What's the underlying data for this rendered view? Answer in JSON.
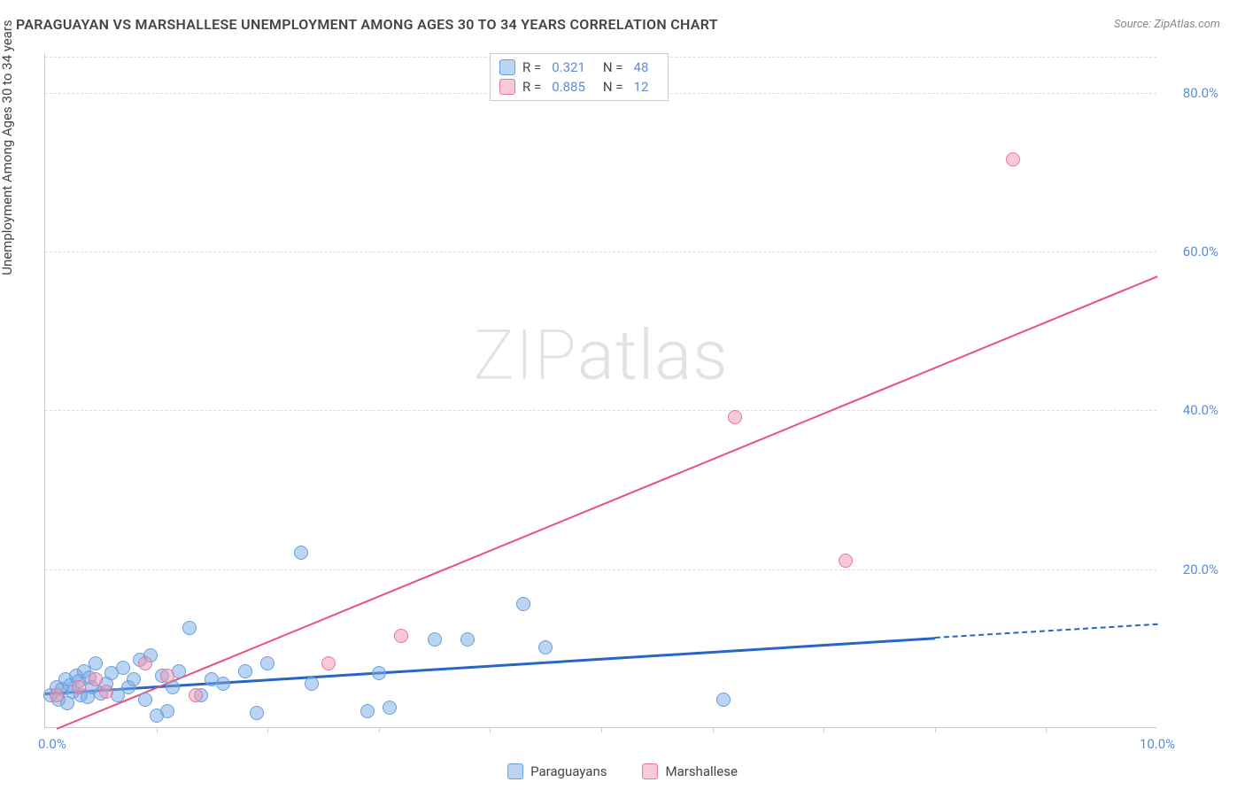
{
  "title": "PARAGUAYAN VS MARSHALLESE UNEMPLOYMENT AMONG AGES 30 TO 34 YEARS CORRELATION CHART",
  "source_label": "Source: ZipAtlas.com",
  "y_axis_label": "Unemployment Among Ages 30 to 34 years",
  "watermark": "ZIPatlas",
  "chart": {
    "type": "scatter",
    "xlim": [
      0,
      10
    ],
    "ylim": [
      0,
      85
    ],
    "x_ticks": [
      0,
      1,
      2,
      3,
      4,
      5,
      6,
      7,
      8,
      9,
      10
    ],
    "x_tick_labels": {
      "0": "0.0%",
      "10": "10.0%"
    },
    "x_tick_mark_only": [
      1,
      2,
      3,
      4,
      5,
      6,
      7,
      8,
      9
    ],
    "y_ticks": [
      20,
      40,
      60,
      80
    ],
    "y_tick_labels": {
      "20": "20.0%",
      "40": "40.0%",
      "60": "60.0%",
      "80": "80.0%"
    },
    "grid_color": "#dddddd",
    "background_color": "#ffffff",
    "tick_label_color": "#5b8dd6",
    "title_color": "#444444",
    "series": [
      {
        "name": "Paraguayans",
        "color_fill": "rgba(120,170,230,0.5)",
        "color_stroke": "#6aa0dc",
        "marker_radius": 8,
        "R": "0.321",
        "N": "48",
        "trend": {
          "x0": 0,
          "y0": 4.5,
          "x1": 8.0,
          "y1": 11.5,
          "dashed_x1": 10,
          "dashed_y1": 13.2,
          "color": "#2866c4",
          "width": 2.5
        },
        "points": [
          [
            0.05,
            4.0
          ],
          [
            0.1,
            5.0
          ],
          [
            0.12,
            3.5
          ],
          [
            0.15,
            4.8
          ],
          [
            0.18,
            6.0
          ],
          [
            0.2,
            3.0
          ],
          [
            0.22,
            5.2
          ],
          [
            0.25,
            4.5
          ],
          [
            0.28,
            6.5
          ],
          [
            0.3,
            5.8
          ],
          [
            0.32,
            4.0
          ],
          [
            0.35,
            7.0
          ],
          [
            0.38,
            3.8
          ],
          [
            0.4,
            6.2
          ],
          [
            0.42,
            5.0
          ],
          [
            0.45,
            8.0
          ],
          [
            0.5,
            4.2
          ],
          [
            0.55,
            5.5
          ],
          [
            0.6,
            6.8
          ],
          [
            0.65,
            4.0
          ],
          [
            0.7,
            7.5
          ],
          [
            0.75,
            5.0
          ],
          [
            0.8,
            6.0
          ],
          [
            0.85,
            8.5
          ],
          [
            0.9,
            3.5
          ],
          [
            0.95,
            9.0
          ],
          [
            1.0,
            1.5
          ],
          [
            1.05,
            6.5
          ],
          [
            1.1,
            2.0
          ],
          [
            1.15,
            5.0
          ],
          [
            1.2,
            7.0
          ],
          [
            1.3,
            12.5
          ],
          [
            1.4,
            4.0
          ],
          [
            1.5,
            6.0
          ],
          [
            1.6,
            5.5
          ],
          [
            1.8,
            7.0
          ],
          [
            1.9,
            1.8
          ],
          [
            2.0,
            8.0
          ],
          [
            2.3,
            22.0
          ],
          [
            2.4,
            5.5
          ],
          [
            2.9,
            2.0
          ],
          [
            3.0,
            6.8
          ],
          [
            3.1,
            2.5
          ],
          [
            3.5,
            11.0
          ],
          [
            3.8,
            11.0
          ],
          [
            4.3,
            15.5
          ],
          [
            4.5,
            10.0
          ],
          [
            6.1,
            3.5
          ]
        ]
      },
      {
        "name": "Marshallese",
        "color_fill": "rgba(240,150,175,0.5)",
        "color_stroke": "#e27a9a",
        "marker_radius": 8,
        "R": "0.885",
        "N": "12",
        "trend": {
          "x0": 0.1,
          "y0": 0,
          "x1": 10,
          "y1": 57,
          "color": "#e8517b",
          "width": 2
        },
        "points": [
          [
            0.1,
            4.0
          ],
          [
            0.3,
            5.0
          ],
          [
            0.45,
            6.0
          ],
          [
            0.55,
            4.5
          ],
          [
            0.9,
            8.0
          ],
          [
            1.1,
            6.5
          ],
          [
            1.35,
            4.0
          ],
          [
            2.55,
            8.0
          ],
          [
            3.2,
            11.5
          ],
          [
            6.2,
            39.0
          ],
          [
            7.2,
            21.0
          ],
          [
            8.7,
            71.5
          ]
        ]
      }
    ],
    "correlation_legend": {
      "rows": [
        {
          "swatch_fill": "rgba(120,170,230,0.5)",
          "swatch_stroke": "#6aa0dc",
          "R_label": "R =",
          "R": "0.321",
          "N_label": "N =",
          "N": "48"
        },
        {
          "swatch_fill": "rgba(240,150,175,0.5)",
          "swatch_stroke": "#e27a9a",
          "R_label": "R =",
          "R": "0.885",
          "N_label": "N =",
          "N": "12"
        }
      ]
    },
    "bottom_legend": [
      {
        "swatch_fill": "rgba(120,170,230,0.5)",
        "swatch_stroke": "#6aa0dc",
        "label": "Paraguayans"
      },
      {
        "swatch_fill": "rgba(240,150,175,0.5)",
        "swatch_stroke": "#e27a9a",
        "label": "Marshallese"
      }
    ]
  }
}
